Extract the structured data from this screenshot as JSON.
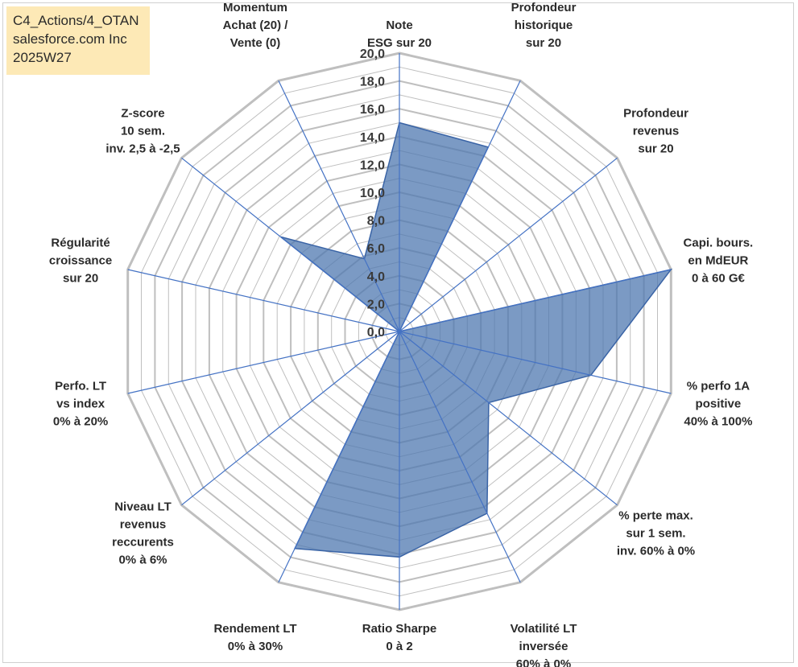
{
  "header": {
    "line1": "C4_Actions/4_OTAN",
    "line2": "salesforce.com Inc",
    "line3": "2025W27"
  },
  "chart_data": {
    "type": "radar",
    "r_range": [
      0,
      20
    ],
    "r_ticks": [
      "0,0",
      "2,0",
      "4,0",
      "6,0",
      "8,0",
      "10,0",
      "12,0",
      "14,0",
      "16,0",
      "18,0",
      "20,0"
    ],
    "grid": true,
    "categories": [
      [
        "Note",
        "ESG sur 20"
      ],
      [
        "Profondeur",
        "historique",
        "sur 20"
      ],
      [
        "Profondeur",
        "revenus",
        "sur 20"
      ],
      [
        "Capi. bours.",
        "en MdEUR",
        "0 à 60 G€"
      ],
      [
        "% perfo 1A",
        "positive",
        "40% à 100%"
      ],
      [
        "% perte max.",
        "sur 1 sem.",
        "inv. 60% à 0%"
      ],
      [
        "Volatilité LT",
        "inversée",
        "60% à 0%"
      ],
      [
        "Ratio Sharpe",
        "0 à 2"
      ],
      [
        "Rendement LT",
        "0% à 30%"
      ],
      [
        "Niveau LT",
        "revenus",
        "reccurents",
        "0% à 6%"
      ],
      [
        "Perfo. LT",
        "vs index",
        "0% à 20%"
      ],
      [
        "Régularité",
        "croissance",
        "sur 20"
      ],
      [
        "Z-score",
        "10 sem.",
        "inv. 2,5 à -2,5"
      ],
      [
        "Momentum",
        "Achat (20) /",
        "Vente (0)"
      ]
    ],
    "series": [
      {
        "values": [
          15.0,
          14.7,
          0.0,
          20.0,
          14.1,
          8.2,
          14.5,
          16.2,
          17.3,
          0.0,
          0.0,
          0.0,
          10.9,
          5.8
        ],
        "color": "#4f78b0"
      }
    ],
    "colors": {
      "grid": "#bfbfbf",
      "axis": "#4472c4",
      "fill": "#4f78b0",
      "stroke": "#3a64a6"
    }
  }
}
